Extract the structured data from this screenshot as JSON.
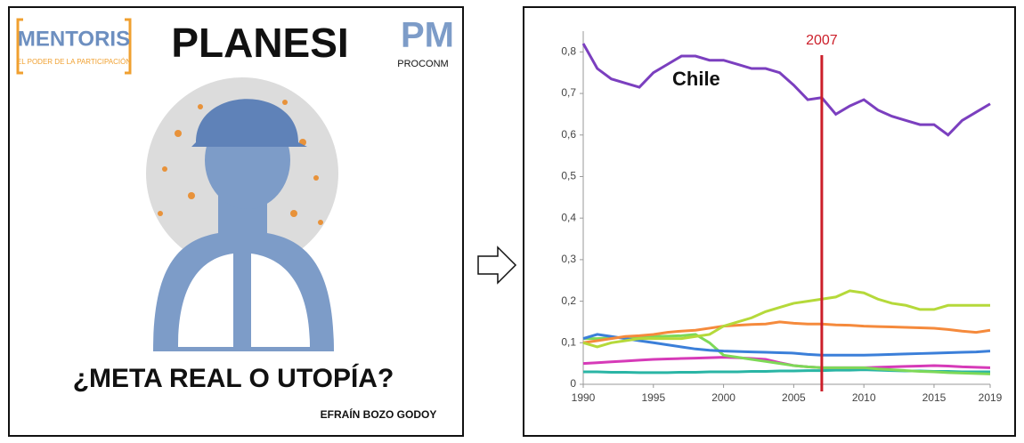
{
  "poster": {
    "logo_left": "MENTORIS",
    "logo_left_tagline": "EL PODER DE LA PARTICIPACIÓN",
    "title": "PLANESI",
    "logo_right_letters": "PM",
    "logo_right_name": "PROCONM",
    "headline": "¿META REAL O UTOPÍA?",
    "author": "EFRAÍN BOZO GODOY"
  },
  "chart_data": {
    "type": "line",
    "x": [
      1990,
      1991,
      1992,
      1993,
      1994,
      1995,
      1996,
      1997,
      1998,
      1999,
      2000,
      2001,
      2002,
      2003,
      2004,
      2005,
      2006,
      2007,
      2008,
      2009,
      2010,
      2011,
      2012,
      2013,
      2014,
      2015,
      2016,
      2017,
      2018,
      2019
    ],
    "series": [
      {
        "name": "Chile",
        "color": "#7b3fbf",
        "values": [
          0.82,
          0.76,
          0.735,
          0.725,
          0.715,
          0.75,
          0.77,
          0.79,
          0.79,
          0.78,
          0.78,
          0.77,
          0.76,
          0.76,
          0.75,
          0.72,
          0.685,
          0.69,
          0.65,
          0.67,
          0.685,
          0.66,
          0.645,
          0.635,
          0.625,
          0.625,
          0.6,
          0.635,
          0.655,
          0.675
        ]
      },
      {
        "color": "#b5d93a",
        "values": [
          0.1,
          0.09,
          0.1,
          0.105,
          0.11,
          0.11,
          0.11,
          0.11,
          0.115,
          0.12,
          0.14,
          0.15,
          0.16,
          0.175,
          0.185,
          0.195,
          0.2,
          0.205,
          0.21,
          0.225,
          0.22,
          0.205,
          0.195,
          0.19,
          0.18,
          0.18,
          0.19,
          0.19,
          0.19,
          0.19
        ]
      },
      {
        "color": "#f58a3c",
        "values": [
          0.1,
          0.105,
          0.11,
          0.115,
          0.117,
          0.12,
          0.125,
          0.128,
          0.13,
          0.135,
          0.14,
          0.142,
          0.144,
          0.145,
          0.15,
          0.147,
          0.145,
          0.145,
          0.143,
          0.142,
          0.14,
          0.139,
          0.138,
          0.137,
          0.136,
          0.135,
          0.132,
          0.128,
          0.125,
          0.13
        ]
      },
      {
        "color": "#3b7fd9",
        "values": [
          0.11,
          0.12,
          0.115,
          0.11,
          0.105,
          0.1,
          0.095,
          0.09,
          0.085,
          0.082,
          0.08,
          0.079,
          0.078,
          0.077,
          0.076,
          0.075,
          0.072,
          0.07,
          0.07,
          0.07,
          0.07,
          0.071,
          0.072,
          0.073,
          0.074,
          0.075,
          0.076,
          0.077,
          0.078,
          0.08
        ]
      },
      {
        "color": "#7ed957",
        "values": [
          0.11,
          0.11,
          0.112,
          0.113,
          0.114,
          0.115,
          0.116,
          0.117,
          0.12,
          0.1,
          0.07,
          0.065,
          0.06,
          0.055,
          0.05,
          0.045,
          0.042,
          0.04,
          0.04,
          0.04,
          0.04,
          0.037,
          0.035,
          0.033,
          0.031,
          0.03,
          0.028,
          0.027,
          0.026,
          0.025
        ]
      },
      {
        "color": "#d63ab8",
        "values": [
          0.05,
          0.052,
          0.054,
          0.056,
          0.058,
          0.06,
          0.061,
          0.062,
          0.063,
          0.064,
          0.065,
          0.064,
          0.062,
          0.06,
          0.052,
          0.045,
          0.042,
          0.04,
          0.04,
          0.04,
          0.04,
          0.041,
          0.042,
          0.043,
          0.044,
          0.045,
          0.044,
          0.042,
          0.041,
          0.04
        ]
      },
      {
        "color": "#2ab5a5",
        "values": [
          0.03,
          0.03,
          0.029,
          0.029,
          0.028,
          0.028,
          0.028,
          0.029,
          0.029,
          0.03,
          0.03,
          0.03,
          0.031,
          0.031,
          0.032,
          0.032,
          0.033,
          0.033,
          0.034,
          0.034,
          0.035,
          0.034,
          0.033,
          0.032,
          0.032,
          0.031,
          0.031,
          0.03,
          0.03,
          0.03
        ]
      }
    ],
    "xlim": [
      1990,
      2019
    ],
    "xticks": [
      1990,
      1995,
      2000,
      2005,
      2010,
      2015,
      2019
    ],
    "ylim": [
      0,
      0.85
    ],
    "yticks": [
      0,
      {
        "value": 0.1,
        "label": "0,1"
      },
      {
        "value": 0.2,
        "label": "0,2"
      },
      {
        "value": 0.3,
        "label": "0,3"
      },
      {
        "value": 0.4,
        "label": "0,4"
      },
      {
        "value": 0.5,
        "label": "0,5"
      },
      {
        "value": 0.6,
        "label": "0,6"
      },
      {
        "value": 0.7,
        "label": "0,7"
      },
      {
        "value": 0.8,
        "label": "0,8"
      }
    ],
    "grid": false,
    "vline": {
      "x": 2007,
      "color": "#cc1f2a"
    }
  }
}
